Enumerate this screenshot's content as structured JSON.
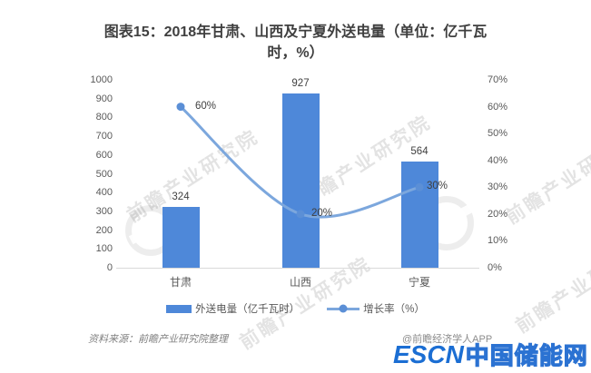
{
  "title": "图表15：2018年甘肃、山西及宁夏外送电量（单位：亿千瓦时，%）",
  "source_note": "资料来源：前瞻产业研究院整理",
  "credit": "@前瞻经济学人APP",
  "logo": {
    "escn": "ESCN",
    "site_name": "中国储能网"
  },
  "watermark_text": "前瞻产业研究院",
  "colors": {
    "bar": "#4e88d9",
    "line": "#7ca7dd",
    "marker": "#5b8fd6",
    "axis_text": "#595959",
    "data_label": "#404040",
    "title_text": "#3f3f3f",
    "logo_blue": "#1b6ed3"
  },
  "chart_data": {
    "type": "bar",
    "categories": [
      "甘肃",
      "山西",
      "宁夏"
    ],
    "series": [
      {
        "name": "外送电量（亿千瓦时）",
        "type": "bar",
        "axis": "left",
        "values": [
          324,
          927,
          564
        ]
      },
      {
        "name": "增长率（%）",
        "type": "line",
        "axis": "right",
        "values": [
          60,
          20,
          30
        ],
        "point_labels": [
          "60%",
          "20%",
          "30%"
        ]
      }
    ],
    "bar_labels": [
      "324",
      "927",
      "564"
    ],
    "left_axis": {
      "min": 0,
      "max": 1000,
      "step": 100,
      "ticks": [
        "0",
        "100",
        "200",
        "300",
        "400",
        "500",
        "600",
        "700",
        "800",
        "900",
        "1000"
      ]
    },
    "right_axis": {
      "min": 0,
      "max": 70,
      "step": 10,
      "ticks": [
        "0%",
        "10%",
        "20%",
        "30%",
        "40%",
        "50%",
        "60%",
        "70%"
      ]
    },
    "legend": [
      "外送电量（亿千瓦时）",
      "增长率（%）"
    ],
    "legend_position": "bottom",
    "grid": false
  }
}
